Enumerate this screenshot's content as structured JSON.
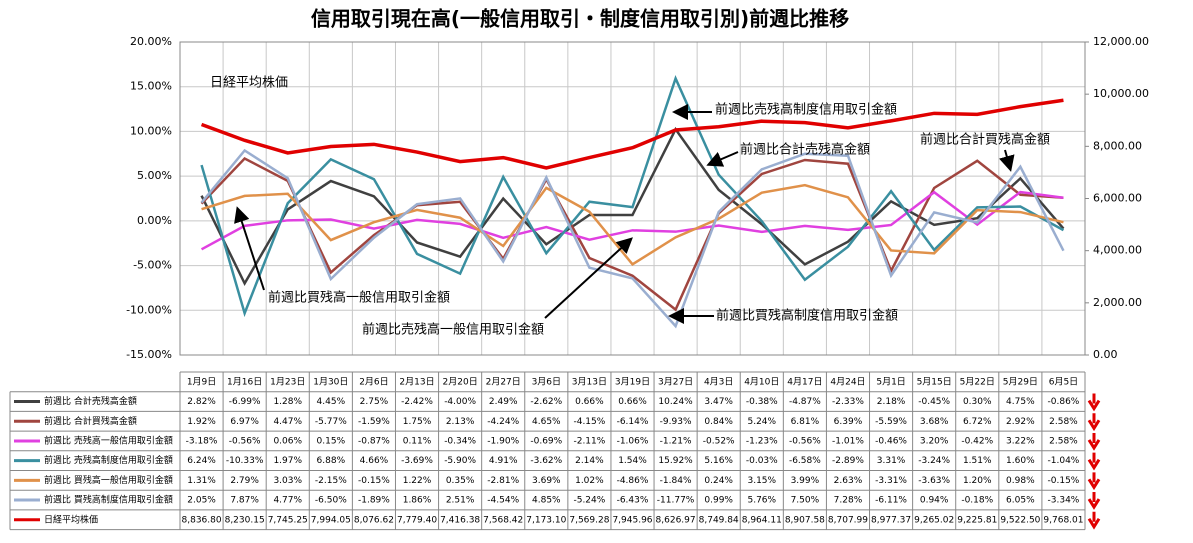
{
  "chart_data": {
    "type": "line",
    "title": "信用取引現在高(一般信用取引・制度信用取引別)前週比推移",
    "categories": [
      "1月9日",
      "1月16日",
      "1月23日",
      "1月30日",
      "2月6日",
      "2月13日",
      "2月20日",
      "2月27日",
      "3月6日",
      "3月13日",
      "3月19日",
      "3月27日",
      "4月3日",
      "4月10日",
      "4月17日",
      "4月24日",
      "5月1日",
      "5月15日",
      "5月22日",
      "5月29日",
      "6月5日"
    ],
    "ylim": [
      -15,
      20
    ],
    "yticks": [
      {
        "value": -15,
        "label": "-15.00%"
      },
      {
        "value": -10,
        "label": "-10.00%"
      },
      {
        "value": -5,
        "label": "-5.00%"
      },
      {
        "value": 0,
        "label": "0.00%"
      },
      {
        "value": 5,
        "label": "5.00%"
      },
      {
        "value": 10,
        "label": "10.00%"
      },
      {
        "value": 15,
        "label": "15.00%"
      },
      {
        "value": 20,
        "label": "20.00%"
      }
    ],
    "y2lim": [
      0,
      12000
    ],
    "y2ticks": [
      {
        "value": 0,
        "label": "0.00"
      },
      {
        "value": 2000,
        "label": "2,000.00"
      },
      {
        "value": 4000,
        "label": "4,000.00"
      },
      {
        "value": 6000,
        "label": "6,000.00"
      },
      {
        "value": 8000,
        "label": "8,000.00"
      },
      {
        "value": 10000,
        "label": "10,000.00"
      },
      {
        "value": 12000,
        "label": "12,000.00"
      }
    ],
    "grid": true,
    "annotations": [
      "日経平均株価",
      "前週比売残高制度信用取引金額",
      "前週比合計売残高金額",
      "前週比合計買残高金額",
      "前週比買残高一般信用取引金額",
      "前週比売残高一般信用取引金額",
      "前週比買残高制度信用取引金額"
    ],
    "series": [
      {
        "name": "前週比 合計売残高金額",
        "color": "#404040",
        "values": [
          2.82,
          -6.99,
          1.28,
          4.45,
          2.75,
          -2.42,
          -4.0,
          2.49,
          -2.62,
          0.66,
          0.66,
          10.24,
          3.47,
          -0.38,
          -4.87,
          -2.33,
          2.18,
          -0.45,
          0.3,
          4.75,
          -0.86
        ],
        "value_labels": [
          "2.82%",
          "-6.99%",
          "1.28%",
          "4.45%",
          "2.75%",
          "-2.42%",
          "-4.00%",
          "2.49%",
          "-2.62%",
          "0.66%",
          "0.66%",
          "10.24%",
          "3.47%",
          "-0.38%",
          "-4.87%",
          "-2.33%",
          "2.18%",
          "-0.45%",
          "0.30%",
          "4.75%",
          "-0.86%"
        ]
      },
      {
        "name": "前週比 合計買残高金額",
        "color": "#a0453f",
        "values": [
          1.92,
          6.97,
          4.47,
          -5.77,
          -1.59,
          1.75,
          2.13,
          -4.24,
          4.65,
          -4.15,
          -6.14,
          -9.93,
          0.84,
          5.24,
          6.81,
          6.39,
          -5.59,
          3.68,
          6.72,
          2.92,
          2.58
        ],
        "value_labels": [
          "1.92%",
          "6.97%",
          "4.47%",
          "-5.77%",
          "-1.59%",
          "1.75%",
          "2.13%",
          "-4.24%",
          "4.65%",
          "-4.15%",
          "-6.14%",
          "-9.93%",
          "0.84%",
          "5.24%",
          "6.81%",
          "6.39%",
          "-5.59%",
          "3.68%",
          "6.72%",
          "2.92%",
          "2.58%"
        ]
      },
      {
        "name": "前週比 売残高一般信用取引金額",
        "color": "#e040e0",
        "values": [
          -3.18,
          -0.56,
          0.06,
          0.15,
          -0.87,
          0.11,
          -0.34,
          -1.9,
          -0.69,
          -2.11,
          -1.06,
          -1.21,
          -0.52,
          -1.23,
          -0.56,
          -1.01,
          -0.46,
          3.2,
          -0.42,
          3.22,
          2.58
        ],
        "value_labels": [
          "-3.18%",
          "-0.56%",
          "0.06%",
          "0.15%",
          "-0.87%",
          "0.11%",
          "-0.34%",
          "-1.90%",
          "-0.69%",
          "-2.11%",
          "-1.06%",
          "-1.21%",
          "-0.52%",
          "-1.23%",
          "-0.56%",
          "-1.01%",
          "-0.46%",
          "3.20%",
          "-0.42%",
          "3.22%",
          "2.58%"
        ]
      },
      {
        "name": "前週比 売残高制度信用取引金額",
        "color": "#3a8fa0",
        "values": [
          6.24,
          -10.33,
          1.97,
          6.88,
          4.66,
          -3.69,
          -5.9,
          4.91,
          -3.62,
          2.14,
          1.54,
          15.92,
          5.16,
          -0.03,
          -6.58,
          -2.89,
          3.31,
          -3.24,
          1.51,
          1.6,
          -1.04
        ],
        "value_labels": [
          "6.24%",
          "-10.33%",
          "1.97%",
          "6.88%",
          "4.66%",
          "-3.69%",
          "-5.90%",
          "4.91%",
          "-3.62%",
          "2.14%",
          "1.54%",
          "15.92%",
          "5.16%",
          "-0.03%",
          "-6.58%",
          "-2.89%",
          "3.31%",
          "-3.24%",
          "1.51%",
          "1.60%",
          "-1.04%"
        ]
      },
      {
        "name": "前週比 買残高一般信用取引金額",
        "color": "#e0914a",
        "values": [
          1.31,
          2.79,
          3.03,
          -2.15,
          -0.15,
          1.22,
          0.35,
          -2.81,
          3.69,
          1.02,
          -4.86,
          -1.84,
          0.24,
          3.15,
          3.99,
          2.63,
          -3.31,
          -3.63,
          1.2,
          0.98,
          -0.15
        ],
        "value_labels": [
          "1.31%",
          "2.79%",
          "3.03%",
          "-2.15%",
          "-0.15%",
          "1.22%",
          "0.35%",
          "-2.81%",
          "3.69%",
          "1.02%",
          "-4.86%",
          "-1.84%",
          "0.24%",
          "3.15%",
          "3.99%",
          "2.63%",
          "-3.31%",
          "-3.63%",
          "1.20%",
          "0.98%",
          "-0.15%"
        ]
      },
      {
        "name": "前週比 買残高制度信用取引金額",
        "color": "#9aaed0",
        "values": [
          2.05,
          7.87,
          4.77,
          -6.5,
          -1.89,
          1.86,
          2.51,
          -4.54,
          4.85,
          -5.24,
          -6.43,
          -11.77,
          0.99,
          5.76,
          7.5,
          7.28,
          -6.11,
          0.94,
          -0.18,
          6.05,
          -3.34
        ],
        "value_labels": [
          "2.05%",
          "7.87%",
          "4.77%",
          "-6.50%",
          "-1.89%",
          "1.86%",
          "2.51%",
          "-4.54%",
          "4.85%",
          "-5.24%",
          "-6.43%",
          "-11.77%",
          "0.99%",
          "5.76%",
          "7.50%",
          "7.28%",
          "-6.11%",
          "0.94%",
          "-0.18%",
          "6.05%",
          "-3.34%"
        ]
      },
      {
        "name": "日経平均株価",
        "color": "#e00000",
        "axis": "y2",
        "values": [
          8836.8,
          8230.15,
          7745.25,
          7994.05,
          8076.62,
          7779.4,
          7416.38,
          7568.42,
          7173.1,
          7569.28,
          7945.96,
          8626.97,
          8749.84,
          8964.11,
          8907.58,
          8707.99,
          8977.37,
          9265.02,
          9225.81,
          9522.5,
          9768.01
        ],
        "value_labels": [
          "8,836.80",
          "8,230.15",
          "7,745.25",
          "7,994.05",
          "8,076.62",
          "7,779.40",
          "7,416.38",
          "7,568.42",
          "7,173.10",
          "7,569.28",
          "7,945.96",
          "8,626.97",
          "8,749.84",
          "8,964.11",
          "8,907.58",
          "8,707.99",
          "8,977.37",
          "9,265.02",
          "9,225.81",
          "9,522.50",
          "9,768.01"
        ]
      }
    ]
  }
}
